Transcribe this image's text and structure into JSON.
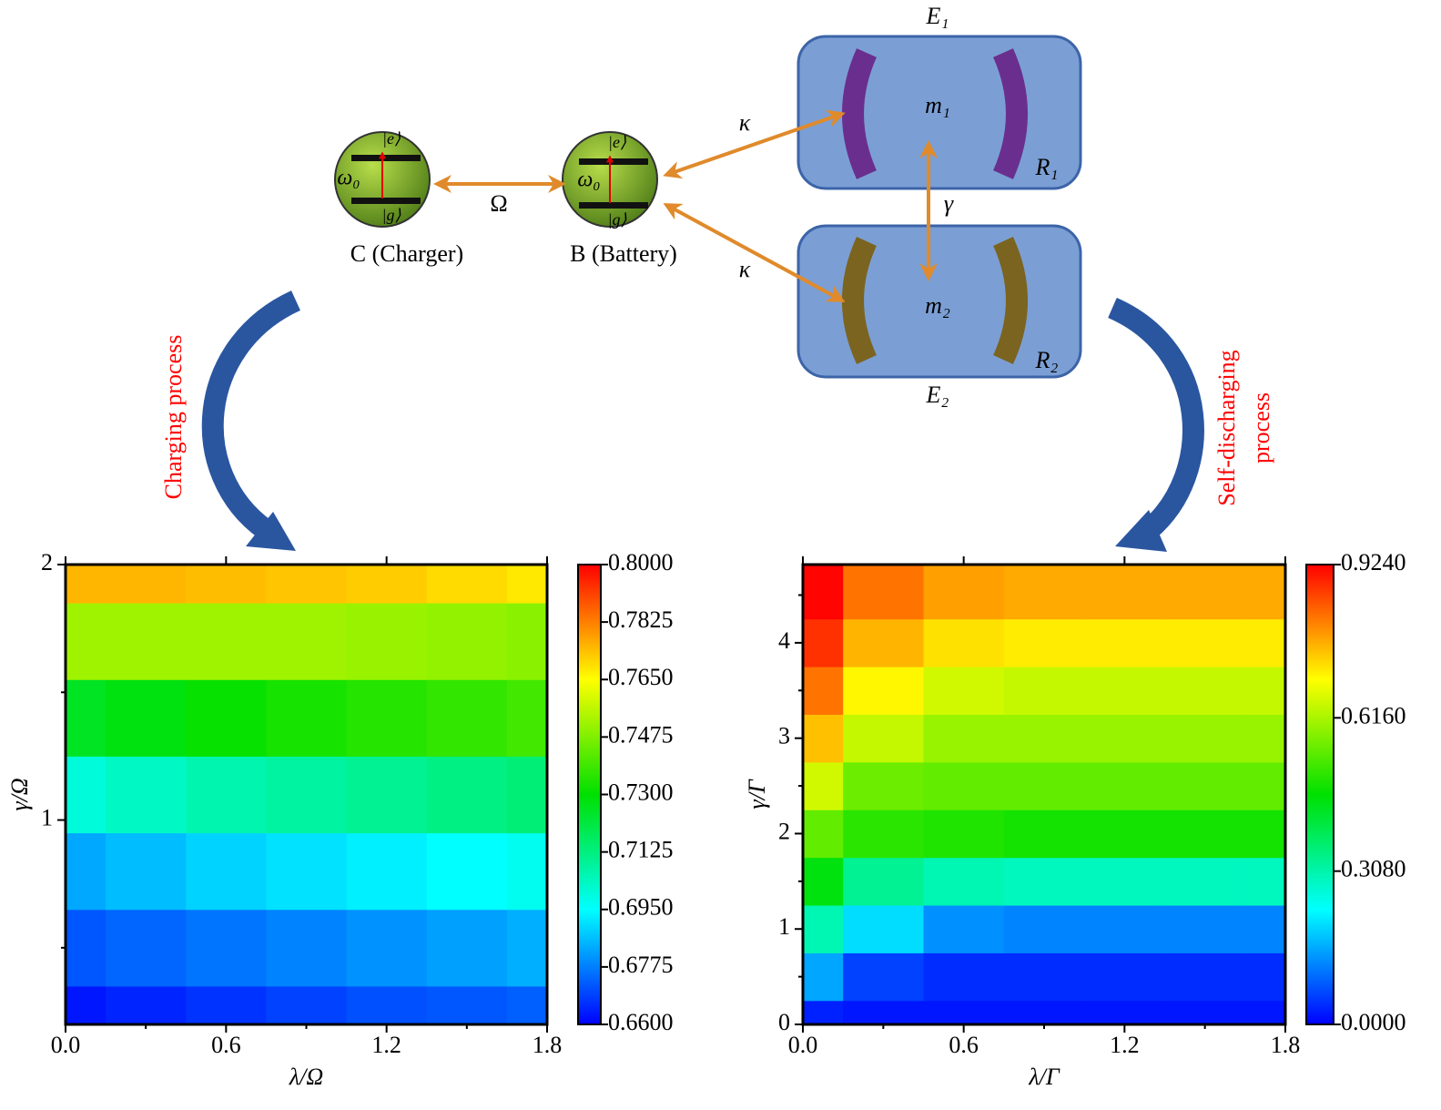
{
  "diagram": {
    "charger": {
      "label": "C (Charger)",
      "freq": "ω₀",
      "excited": "|e⟩",
      "ground": "|g⟩"
    },
    "battery": {
      "label": "B (Battery)",
      "freq": "ω₀",
      "excited": "|e⟩",
      "ground": "|g⟩"
    },
    "coupling_cb": "Ω",
    "coupling_b1": "κ",
    "coupling_b2": "κ",
    "coupling_mm": "γ",
    "magnon1": {
      "env": "E₁",
      "mode": "m₁",
      "reservoir": "R₁"
    },
    "magnon2": {
      "env": "E₂",
      "mode": "m₂",
      "reservoir": "R₂"
    },
    "left_arrow": "Charging process",
    "right_arrow": [
      "Self-discharging",
      "process"
    ]
  },
  "chart_data": [
    {
      "type": "heatmap",
      "xlabel": "λ/Ω",
      "ylabel": "γ/Ω",
      "xlim": [
        0,
        1.8
      ],
      "xticks": [
        {
          "value": 0,
          "label": "0.0"
        },
        0.6,
        1.2,
        1.8
      ],
      "xminor": [
        0.3,
        0.9,
        1.5
      ],
      "ylim": [
        0.2,
        2
      ],
      "yticks": [
        1,
        2
      ],
      "yminor": [
        0.5,
        1.5
      ],
      "colormap": [
        "#0000ff",
        "#00ffff",
        "#00e000",
        "#ffff00",
        "#ff0000"
      ],
      "zlim": [
        0.66,
        0.8
      ],
      "zticks": [
        {
          "value": 0.66,
          "label": "0.6600"
        },
        {
          "value": 0.6775,
          "label": "0.6775"
        },
        {
          "value": 0.695,
          "label": "0.6950"
        },
        {
          "value": 0.7125,
          "label": "0.7125"
        },
        {
          "value": 0.73,
          "label": "0.7300"
        },
        {
          "value": 0.7475,
          "label": "0.7475"
        },
        {
          "value": 0.765,
          "label": "0.7650"
        },
        {
          "value": 0.7825,
          "label": "0.7825"
        },
        {
          "value": 0.8,
          "label": "0.8000"
        }
      ],
      "x": [
        0,
        0.3,
        0.6,
        0.9,
        1.2,
        1.5,
        1.8
      ],
      "y": [
        0.2,
        0.5,
        0.8,
        1.1,
        1.4,
        1.7,
        2.0
      ],
      "z": [
        [
          0.663,
          0.665,
          0.667,
          0.669,
          0.671,
          0.672,
          0.673
        ],
        [
          0.672,
          0.674,
          0.676,
          0.678,
          0.68,
          0.682,
          0.684
        ],
        [
          0.683,
          0.686,
          0.689,
          0.691,
          0.693,
          0.695,
          0.697
        ],
        [
          0.7,
          0.703,
          0.706,
          0.708,
          0.71,
          0.712,
          0.714
        ],
        [
          0.725,
          0.728,
          0.731,
          0.733,
          0.735,
          0.737,
          0.739
        ],
        [
          0.752,
          0.752,
          0.752,
          0.752,
          0.751,
          0.75,
          0.749
        ],
        [
          0.775,
          0.775,
          0.774,
          0.773,
          0.772,
          0.77,
          0.768
        ]
      ]
    },
    {
      "type": "heatmap",
      "xlabel": "λ/Γ",
      "ylabel": "γ/Γ",
      "xlim": [
        0,
        1.8
      ],
      "xticks": [
        {
          "value": 0,
          "label": "0.0"
        },
        0.6,
        1.2,
        1.8
      ],
      "xminor": [
        0.3,
        0.9,
        1.5
      ],
      "ylim": [
        0,
        4.82
      ],
      "yticks": [
        0,
        1,
        2,
        3,
        4
      ],
      "yminor": [
        0.5,
        1.5,
        2.5,
        3.5,
        4.5
      ],
      "colormap": [
        "#0000ff",
        "#00ffff",
        "#00e000",
        "#ffff00",
        "#ff0000"
      ],
      "zlim": [
        0,
        0.924
      ],
      "zticks": [
        {
          "value": 0,
          "label": "0.0000"
        },
        {
          "value": 0.308,
          "label": "0.3080"
        },
        {
          "value": 0.616,
          "label": "0.6160"
        },
        {
          "value": 0.924,
          "label": "0.9240"
        }
      ],
      "x": [
        0,
        0.3,
        0.6,
        0.9,
        1.2,
        1.5,
        1.8
      ],
      "y": [
        0,
        0.5,
        1,
        1.5,
        2,
        2.5,
        3,
        3.5,
        4,
        4.5
      ],
      "z": [
        [
          0.03,
          0.02,
          0.02,
          0.02,
          0.02,
          0.02,
          0.02
        ],
        [
          0.15,
          0.06,
          0.04,
          0.04,
          0.04,
          0.04,
          0.04
        ],
        [
          0.3,
          0.2,
          0.13,
          0.12,
          0.12,
          0.12,
          0.12
        ],
        [
          0.45,
          0.33,
          0.3,
          0.29,
          0.29,
          0.29,
          0.29
        ],
        [
          0.55,
          0.5,
          0.49,
          0.48,
          0.48,
          0.48,
          0.48
        ],
        [
          0.65,
          0.56,
          0.55,
          0.55,
          0.55,
          0.55,
          0.55
        ],
        [
          0.75,
          0.64,
          0.6,
          0.6,
          0.6,
          0.6,
          0.6
        ],
        [
          0.82,
          0.7,
          0.65,
          0.64,
          0.64,
          0.64,
          0.64
        ],
        [
          0.88,
          0.76,
          0.72,
          0.71,
          0.71,
          0.71,
          0.71
        ],
        [
          0.92,
          0.82,
          0.78,
          0.77,
          0.77,
          0.77,
          0.77
        ]
      ]
    }
  ]
}
